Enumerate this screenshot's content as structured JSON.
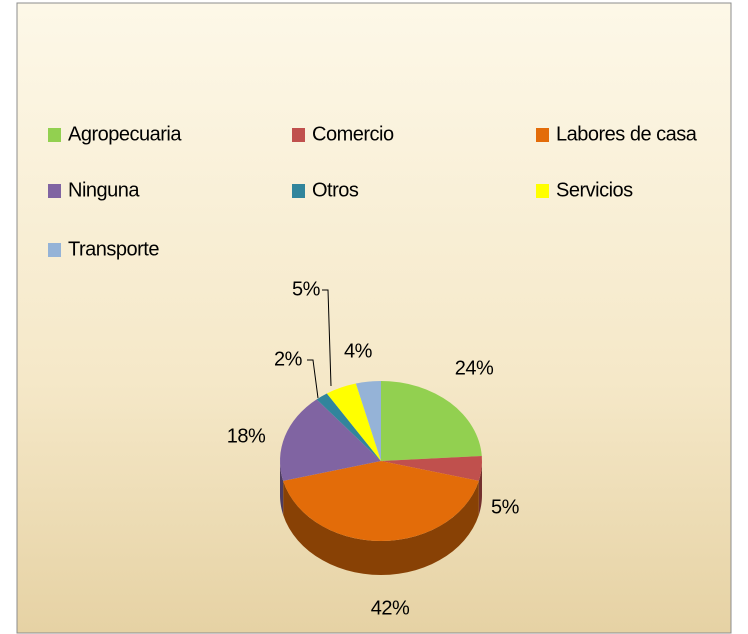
{
  "chart_data": {
    "type": "pie3d",
    "categories": [
      "Agropecuaria",
      "Comercio",
      "Labores de casa",
      "Ninguna",
      "Otros",
      "Servicios",
      "Transporte"
    ],
    "values": [
      24,
      5,
      42,
      18,
      2,
      5,
      4
    ],
    "value_labels": [
      "24%",
      "5%",
      "42%",
      "18%",
      "2%",
      "5%",
      "4%"
    ],
    "colors": [
      "#92d050",
      "#c0504d",
      "#e36c09",
      "#8064a2",
      "#31859c",
      "#ffff00",
      "#95b3d7"
    ],
    "legend": "top"
  }
}
